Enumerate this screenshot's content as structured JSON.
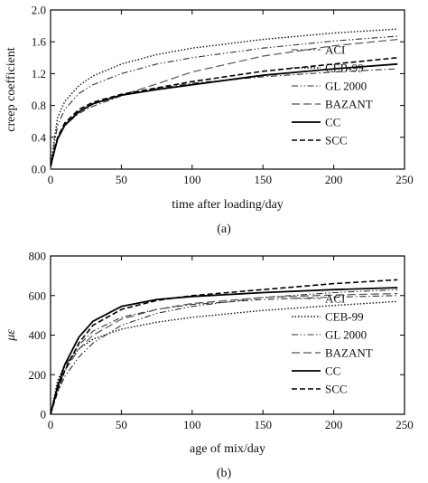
{
  "chart_data": [
    {
      "type": "line",
      "panel_label": "(a)",
      "xlabel": "time after loading/day",
      "ylabel": "creep coefficient",
      "xlim": [
        0,
        250
      ],
      "ylim": [
        0,
        2.0
      ],
      "x_ticks": [
        0,
        50,
        100,
        150,
        200,
        250
      ],
      "y_ticks": [
        0.0,
        0.4,
        0.8,
        1.2,
        1.6,
        2.0
      ],
      "y_tick_labels": [
        "0.0",
        "0.4",
        "0.8",
        "1.2",
        "1.6",
        "2.0"
      ],
      "grid": false,
      "legend_position": "bottom-right",
      "series": [
        {
          "name": "ACI",
          "style": "dashdot",
          "color": "#333333",
          "x": [
            0,
            5,
            10,
            20,
            30,
            50,
            75,
            100,
            150,
            200,
            245
          ],
          "y": [
            0.0,
            0.4,
            0.55,
            0.7,
            0.79,
            0.92,
            1.01,
            1.08,
            1.16,
            1.22,
            1.26
          ]
        },
        {
          "name": "CEB-99",
          "style": "dotted",
          "color": "#111111",
          "x": [
            0,
            5,
            10,
            20,
            30,
            50,
            75,
            100,
            150,
            200,
            245
          ],
          "y": [
            0.05,
            0.65,
            0.85,
            1.05,
            1.17,
            1.32,
            1.44,
            1.52,
            1.63,
            1.71,
            1.76
          ]
        },
        {
          "name": "GL 2000",
          "style": "dashdotdot",
          "color": "#333333",
          "x": [
            0,
            5,
            10,
            20,
            30,
            50,
            75,
            100,
            150,
            200,
            245
          ],
          "y": [
            0.05,
            0.55,
            0.75,
            0.95,
            1.06,
            1.2,
            1.32,
            1.4,
            1.52,
            1.61,
            1.67
          ]
        },
        {
          "name": "BAZANT",
          "style": "longdash",
          "color": "#555555",
          "x": [
            0,
            5,
            10,
            20,
            30,
            50,
            75,
            100,
            150,
            200,
            245
          ],
          "y": [
            0.0,
            0.4,
            0.56,
            0.73,
            0.82,
            0.93,
            1.07,
            1.22,
            1.42,
            1.55,
            1.63
          ]
        },
        {
          "name": "CC",
          "style": "solid",
          "color": "#000000",
          "x": [
            0,
            5,
            10,
            20,
            30,
            50,
            75,
            100,
            150,
            200,
            245
          ],
          "y": [
            0.05,
            0.38,
            0.55,
            0.72,
            0.82,
            0.93,
            1.0,
            1.06,
            1.18,
            1.26,
            1.32
          ]
        },
        {
          "name": "SCC",
          "style": "dashed",
          "color": "#000000",
          "x": [
            0,
            5,
            10,
            20,
            30,
            50,
            75,
            100,
            150,
            200,
            245
          ],
          "y": [
            0.05,
            0.4,
            0.58,
            0.75,
            0.84,
            0.94,
            1.02,
            1.1,
            1.23,
            1.32,
            1.4
          ]
        }
      ]
    },
    {
      "type": "line",
      "panel_label": "(b)",
      "xlabel": "age of mix/day",
      "ylabel": "με",
      "xlim": [
        0,
        250
      ],
      "ylim": [
        0,
        800
      ],
      "x_ticks": [
        0,
        50,
        100,
        150,
        200,
        250
      ],
      "y_ticks": [
        0,
        200,
        400,
        600,
        800
      ],
      "y_tick_labels": [
        "0",
        "200",
        "400",
        "600",
        "800"
      ],
      "grid": false,
      "legend_position": "bottom-right",
      "series": [
        {
          "name": "ACI",
          "style": "dashdot",
          "color": "#333333",
          "x": [
            0,
            5,
            10,
            20,
            30,
            50,
            75,
            100,
            150,
            200,
            245
          ],
          "y": [
            0,
            150,
            240,
            350,
            420,
            490,
            530,
            555,
            580,
            592,
            600
          ]
        },
        {
          "name": "CEB-99",
          "style": "dotted",
          "color": "#111111",
          "x": [
            0,
            5,
            10,
            20,
            30,
            50,
            75,
            100,
            150,
            200,
            245
          ],
          "y": [
            0,
            170,
            250,
            330,
            380,
            430,
            465,
            490,
            525,
            550,
            570
          ]
        },
        {
          "name": "GL 2000",
          "style": "dashdotdot",
          "color": "#333333",
          "x": [
            0,
            5,
            10,
            20,
            30,
            50,
            75,
            100,
            150,
            200,
            245
          ],
          "y": [
            0,
            110,
            190,
            290,
            360,
            450,
            510,
            545,
            590,
            615,
            630
          ]
        },
        {
          "name": "BAZANT",
          "style": "longdash",
          "color": "#555555",
          "x": [
            0,
            5,
            10,
            20,
            30,
            50,
            75,
            100,
            150,
            200,
            245
          ],
          "y": [
            0,
            130,
            220,
            330,
            400,
            480,
            530,
            560,
            590,
            603,
            610
          ]
        },
        {
          "name": "CC",
          "style": "solid",
          "color": "#000000",
          "x": [
            0,
            5,
            10,
            20,
            30,
            50,
            75,
            100,
            150,
            200,
            245
          ],
          "y": [
            0,
            140,
            250,
            390,
            470,
            545,
            580,
            595,
            615,
            630,
            640
          ]
        },
        {
          "name": "SCC",
          "style": "dashed",
          "color": "#000000",
          "x": [
            0,
            5,
            10,
            20,
            30,
            50,
            75,
            100,
            150,
            200,
            245
          ],
          "y": [
            0,
            120,
            220,
            360,
            450,
            530,
            575,
            600,
            630,
            660,
            680
          ]
        }
      ]
    }
  ]
}
